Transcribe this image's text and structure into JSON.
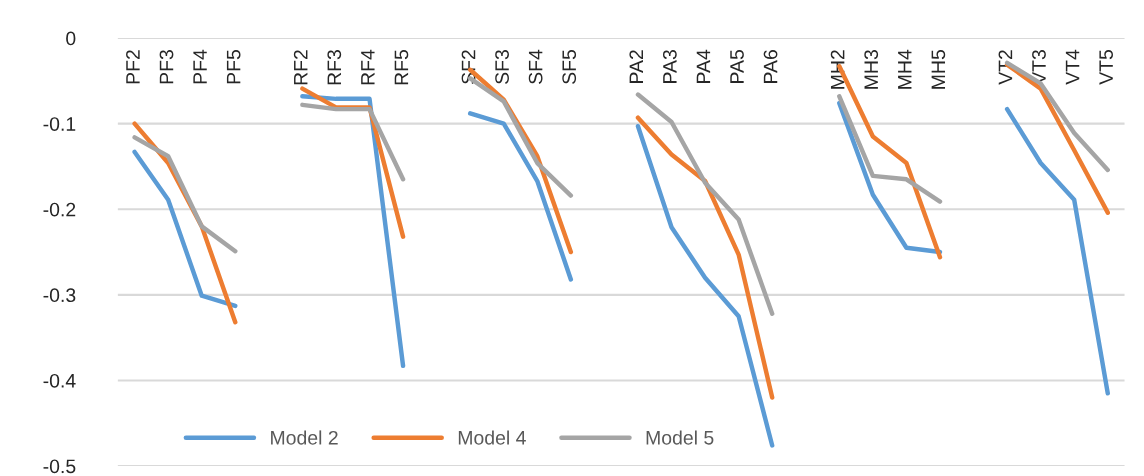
{
  "chart_data": {
    "type": "line",
    "categories": [
      "PF2",
      "PF3",
      "PF4",
      "PF5",
      null,
      "RF2",
      "RF3",
      "RF4",
      "RF5",
      null,
      "SF2",
      "SF3",
      "SF4",
      "SF5",
      null,
      "PA2",
      "PA3",
      "PA4",
      "PA5",
      "PA6",
      null,
      "MH2",
      "MH3",
      "MH4",
      "MH5",
      null,
      "VT2",
      "VT3",
      "VT4",
      "VT5"
    ],
    "series": [
      {
        "name": "Model 2",
        "color": "#5b9bd5",
        "values": [
          -0.133,
          -0.189,
          -0.301,
          -0.313,
          null,
          -0.068,
          -0.071,
          -0.071,
          -0.383,
          null,
          -0.088,
          -0.1,
          -0.167,
          -0.282,
          null,
          -0.103,
          -0.221,
          -0.28,
          -0.325,
          -0.476,
          null,
          -0.076,
          -0.183,
          -0.245,
          -0.25,
          null,
          -0.083,
          -0.146,
          -0.189,
          -0.415
        ]
      },
      {
        "name": "Model 4",
        "color": "#ed7d31",
        "values": [
          -0.1,
          -0.146,
          -0.22,
          -0.332,
          null,
          -0.059,
          -0.081,
          -0.081,
          -0.232,
          null,
          -0.037,
          -0.072,
          -0.138,
          -0.25,
          null,
          -0.093,
          -0.136,
          -0.167,
          -0.253,
          -0.42,
          null,
          -0.033,
          -0.115,
          -0.146,
          -0.256,
          null,
          -0.031,
          -0.059,
          -0.131,
          -0.204
        ]
      },
      {
        "name": "Model 5",
        "color": "#a5a5a5",
        "values": [
          -0.116,
          -0.138,
          -0.22,
          -0.249,
          null,
          -0.078,
          -0.083,
          -0.083,
          -0.165,
          null,
          -0.047,
          -0.074,
          -0.146,
          -0.184,
          null,
          -0.066,
          -0.098,
          -0.169,
          -0.212,
          -0.322,
          null,
          -0.068,
          -0.161,
          -0.165,
          -0.191,
          null,
          -0.029,
          -0.053,
          -0.111,
          -0.154
        ]
      }
    ],
    "ylim": [
      -0.5,
      0
    ],
    "yticks": [
      -0.5,
      -0.4,
      -0.3,
      -0.2,
      -0.1,
      0
    ],
    "grid": "y",
    "legend": "bottom",
    "marker": "none",
    "line_style": "solid"
  }
}
